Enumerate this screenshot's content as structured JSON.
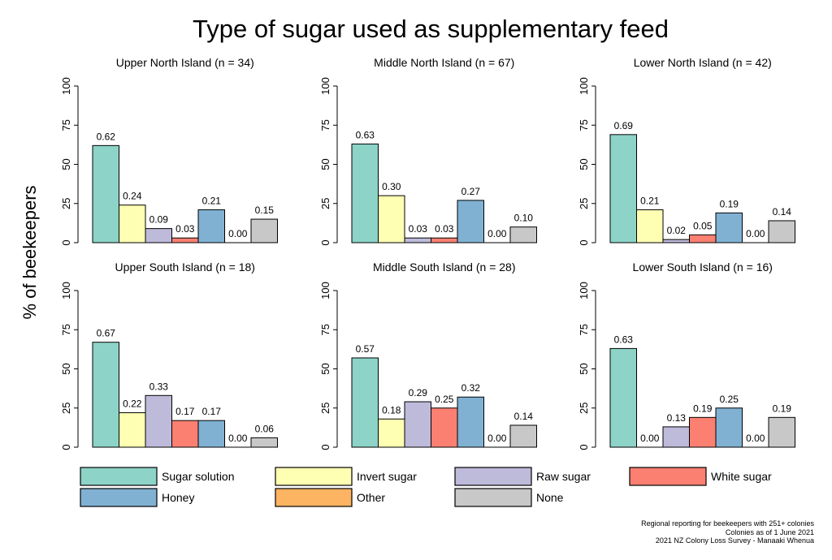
{
  "title": "Type of sugar used as supplementary feed",
  "ylabel": "% of beekeepers",
  "footer": {
    "line1": "Regional reporting for beekeepers with 251+ colonies",
    "line2": "Colonies as of 1 June 2021",
    "line3": "2021 NZ Colony Loss Survey - Manaaki Whenua"
  },
  "colors": {
    "Sugar solution": "#8dd3c7",
    "Invert sugar": "#ffffb3",
    "Raw sugar": "#bebada",
    "White sugar": "#fb8072",
    "Honey": "#80b1d3",
    "Other": "#fdb462",
    "None": "#c8c8c8"
  },
  "legend": [
    "Sugar solution",
    "Invert sugar",
    "Raw sugar",
    "White sugar",
    "Honey",
    "Other",
    "None"
  ],
  "chart_data": [
    {
      "type": "bar",
      "title": "Upper North Island (n = 34)",
      "categories": [
        "Sugar solution",
        "Invert sugar",
        "Raw sugar",
        "White sugar",
        "Honey",
        "Other",
        "None"
      ],
      "values": [
        0.62,
        0.24,
        0.09,
        0.03,
        0.21,
        0.0,
        0.15
      ],
      "labels": [
        "0.62",
        "0.24",
        "0.09",
        "0.03",
        "0.21",
        "0.00",
        "0.15"
      ],
      "ylim": [
        0,
        100
      ],
      "yticks": [
        0,
        25,
        50,
        75,
        100
      ]
    },
    {
      "type": "bar",
      "title": "Middle North Island (n = 67)",
      "categories": [
        "Sugar solution",
        "Invert sugar",
        "Raw sugar",
        "White sugar",
        "Honey",
        "Other",
        "None"
      ],
      "values": [
        0.63,
        0.3,
        0.03,
        0.03,
        0.27,
        0.0,
        0.1
      ],
      "labels": [
        "0.63",
        "0.30",
        "0.03",
        "0.03",
        "0.27",
        "0.00",
        "0.10"
      ],
      "ylim": [
        0,
        100
      ],
      "yticks": [
        0,
        25,
        50,
        75,
        100
      ]
    },
    {
      "type": "bar",
      "title": "Lower North Island (n = 42)",
      "categories": [
        "Sugar solution",
        "Invert sugar",
        "Raw sugar",
        "White sugar",
        "Honey",
        "Other",
        "None"
      ],
      "values": [
        0.69,
        0.21,
        0.02,
        0.05,
        0.19,
        0.0,
        0.14
      ],
      "labels": [
        "0.69",
        "0.21",
        "0.02",
        "0.05",
        "0.19",
        "0.00",
        "0.14"
      ],
      "ylim": [
        0,
        100
      ],
      "yticks": [
        0,
        25,
        50,
        75,
        100
      ]
    },
    {
      "type": "bar",
      "title": "Upper South Island (n = 18)",
      "categories": [
        "Sugar solution",
        "Invert sugar",
        "Raw sugar",
        "White sugar",
        "Honey",
        "Other",
        "None"
      ],
      "values": [
        0.67,
        0.22,
        0.33,
        0.17,
        0.17,
        0.0,
        0.06
      ],
      "labels": [
        "0.67",
        "0.22",
        "0.33",
        "0.17",
        "0.17",
        "0.00",
        "0.06"
      ],
      "ylim": [
        0,
        100
      ],
      "yticks": [
        0,
        25,
        50,
        75,
        100
      ]
    },
    {
      "type": "bar",
      "title": "Middle South Island (n = 28)",
      "categories": [
        "Sugar solution",
        "Invert sugar",
        "Raw sugar",
        "White sugar",
        "Honey",
        "Other",
        "None"
      ],
      "values": [
        0.57,
        0.18,
        0.29,
        0.25,
        0.32,
        0.0,
        0.14
      ],
      "labels": [
        "0.57",
        "0.18",
        "0.29",
        "0.25",
        "0.32",
        "0.00",
        "0.14"
      ],
      "ylim": [
        0,
        100
      ],
      "yticks": [
        0,
        25,
        50,
        75,
        100
      ]
    },
    {
      "type": "bar",
      "title": "Lower South Island (n = 16)",
      "categories": [
        "Sugar solution",
        "Invert sugar",
        "Raw sugar",
        "White sugar",
        "Honey",
        "Other",
        "None"
      ],
      "values": [
        0.63,
        0.0,
        0.13,
        0.19,
        0.25,
        0.0,
        0.19
      ],
      "labels": [
        "0.63",
        "0.00",
        "0.13",
        "0.19",
        "0.25",
        "0.00",
        "0.19"
      ],
      "ylim": [
        0,
        100
      ],
      "yticks": [
        0,
        25,
        50,
        75,
        100
      ]
    }
  ]
}
